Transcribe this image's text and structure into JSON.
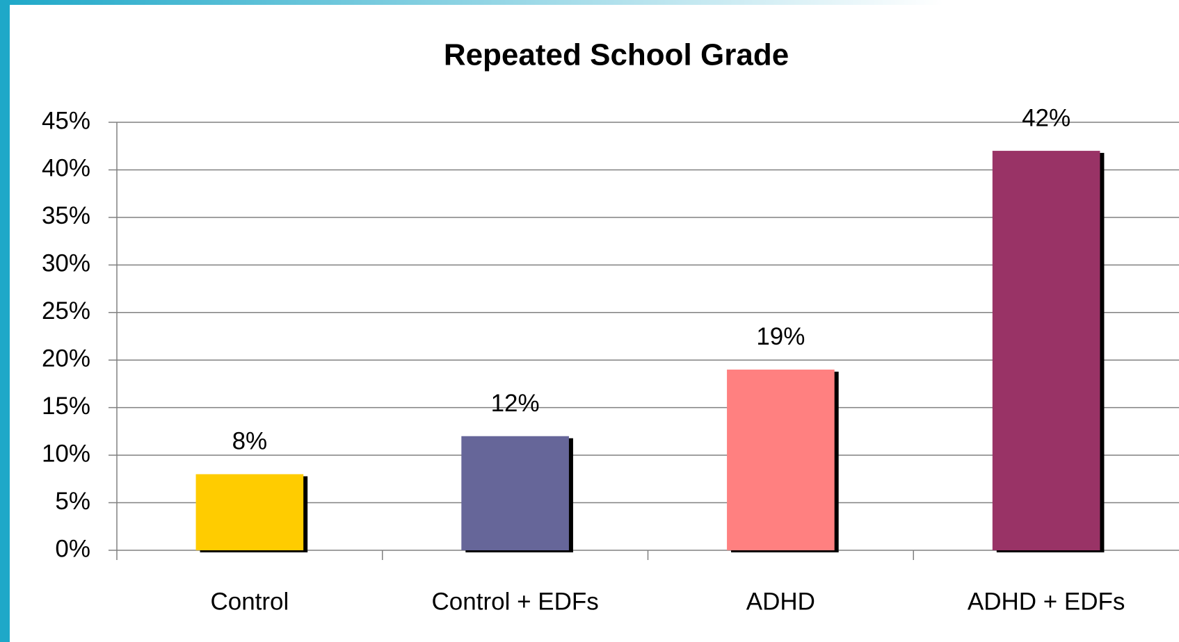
{
  "chart_data": {
    "type": "bar",
    "title": "Repeated School Grade",
    "categories": [
      "Control",
      "Control + EDFs",
      "ADHD",
      "ADHD + EDFs"
    ],
    "values": [
      8,
      12,
      19,
      42
    ],
    "value_labels": [
      "8%",
      "12%",
      "19%",
      "42%"
    ],
    "colors": [
      "#ffcc00",
      "#666699",
      "#ff8080",
      "#993366"
    ],
    "ylim": [
      0,
      45
    ],
    "yticks": [
      {
        "value": 0,
        "label": "0%"
      },
      {
        "value": 5,
        "label": "5%"
      },
      {
        "value": 10,
        "label": "10%"
      },
      {
        "value": 15,
        "label": "15%"
      },
      {
        "value": 20,
        "label": "20%"
      },
      {
        "value": 25,
        "label": "25%"
      },
      {
        "value": 30,
        "label": "30%"
      },
      {
        "value": 35,
        "label": "35%"
      },
      {
        "value": 40,
        "label": "40%"
      },
      {
        "value": 45,
        "label": "45%"
      }
    ],
    "grid": true
  }
}
